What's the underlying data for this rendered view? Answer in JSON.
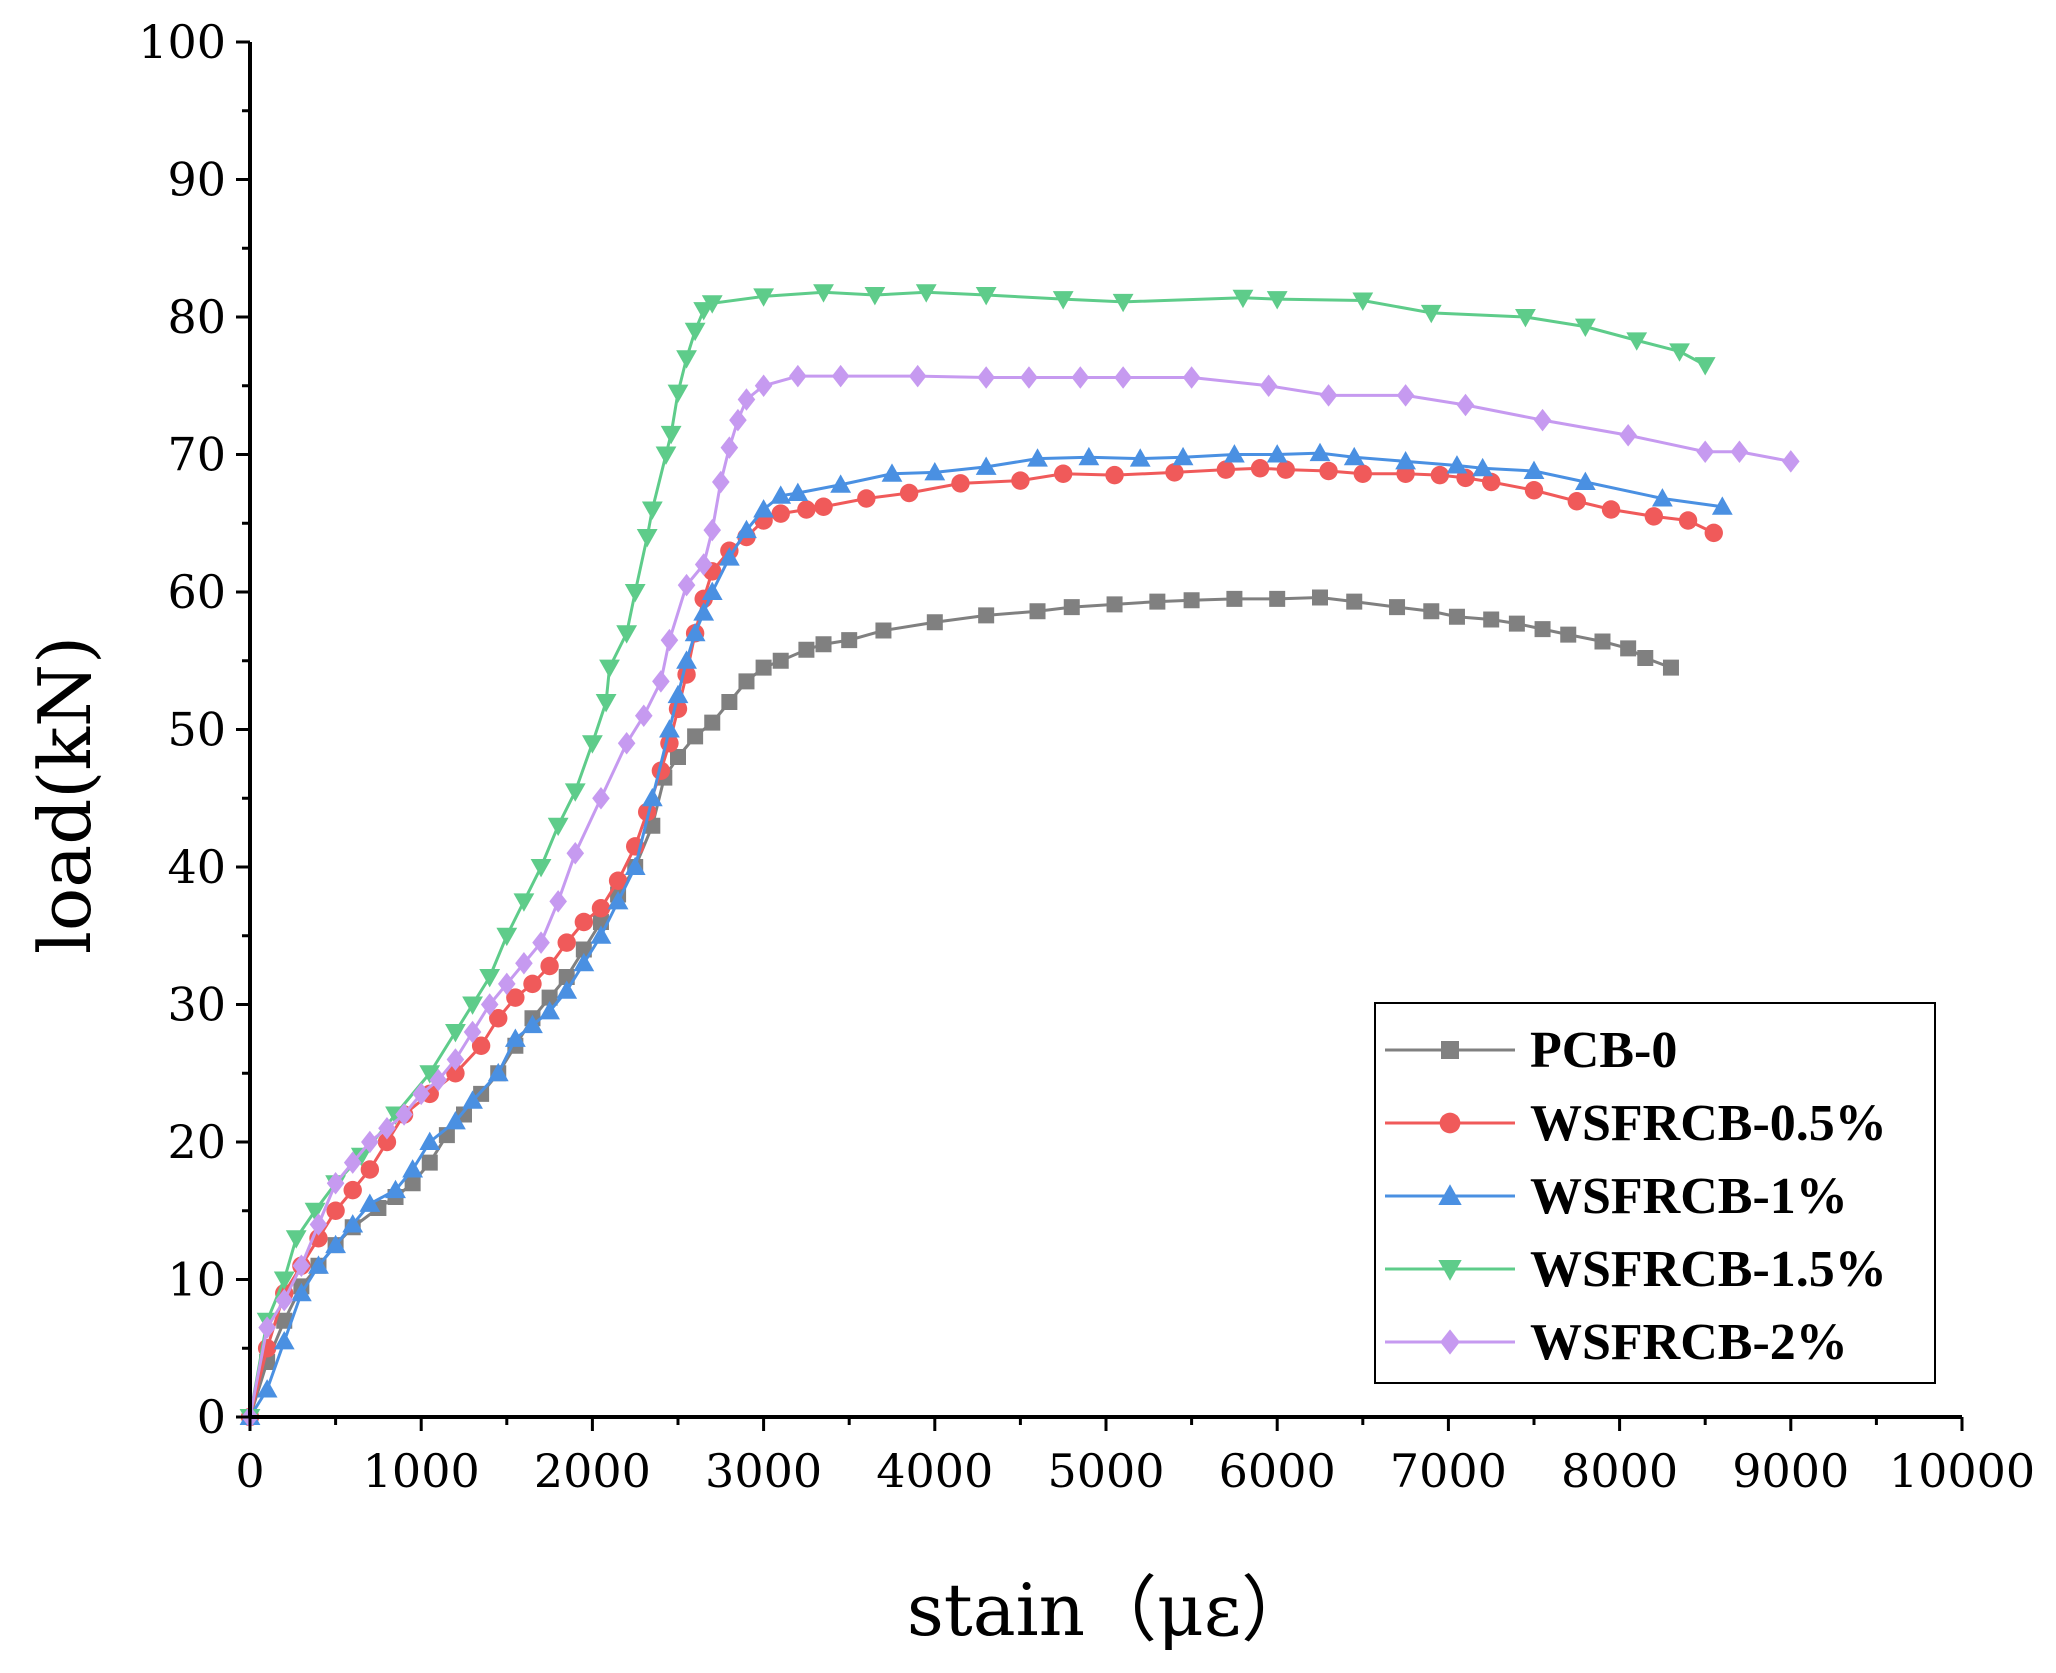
{
  "chart_data": {
    "type": "line",
    "title": "",
    "xlabel": "stain（με）",
    "ylabel": "load(kN)",
    "xlim": [
      0,
      10000
    ],
    "ylim": [
      0,
      100
    ],
    "x_ticks": [
      0,
      1000,
      2000,
      3000,
      4000,
      5000,
      6000,
      7000,
      8000,
      9000,
      10000
    ],
    "y_ticks": [
      0,
      10,
      20,
      30,
      40,
      50,
      60,
      70,
      80,
      90,
      100
    ],
    "grid": false,
    "legend_position": "bottom-right",
    "series": [
      {
        "name": "PCB-0",
        "color": "#808080",
        "marker": "square",
        "points": [
          [
            0,
            0
          ],
          [
            100,
            4
          ],
          [
            200,
            7
          ],
          [
            300,
            9.5
          ],
          [
            400,
            11
          ],
          [
            500,
            12.5
          ],
          [
            600,
            13.8
          ],
          [
            750,
            15.2
          ],
          [
            850,
            16
          ],
          [
            950,
            17
          ],
          [
            1050,
            18.5
          ],
          [
            1150,
            20.5
          ],
          [
            1250,
            22
          ],
          [
            1350,
            23.5
          ],
          [
            1450,
            25
          ],
          [
            1550,
            27
          ],
          [
            1650,
            29
          ],
          [
            1750,
            30.5
          ],
          [
            1850,
            32
          ],
          [
            1950,
            34
          ],
          [
            2050,
            36
          ],
          [
            2150,
            38
          ],
          [
            2250,
            40
          ],
          [
            2350,
            43
          ],
          [
            2420,
            46.5
          ],
          [
            2500,
            48
          ],
          [
            2600,
            49.5
          ],
          [
            2700,
            50.5
          ],
          [
            2800,
            52
          ],
          [
            2900,
            53.5
          ],
          [
            3000,
            54.5
          ],
          [
            3100,
            55
          ],
          [
            3250,
            55.8
          ],
          [
            3350,
            56.2
          ],
          [
            3500,
            56.5
          ],
          [
            3700,
            57.2
          ],
          [
            4000,
            57.8
          ],
          [
            4300,
            58.3
          ],
          [
            4600,
            58.6
          ],
          [
            4800,
            58.9
          ],
          [
            5050,
            59.1
          ],
          [
            5300,
            59.3
          ],
          [
            5500,
            59.4
          ],
          [
            5750,
            59.5
          ],
          [
            6000,
            59.5
          ],
          [
            6250,
            59.6
          ],
          [
            6450,
            59.3
          ],
          [
            6700,
            58.9
          ],
          [
            6900,
            58.6
          ],
          [
            7050,
            58.2
          ],
          [
            7250,
            58
          ],
          [
            7400,
            57.7
          ],
          [
            7550,
            57.3
          ],
          [
            7700,
            56.9
          ],
          [
            7900,
            56.4
          ],
          [
            8050,
            55.9
          ],
          [
            8150,
            55.2
          ],
          [
            8300,
            54.5
          ]
        ]
      },
      {
        "name": "WSFRCB-0.5%",
        "color": "#f05a5a",
        "marker": "circle",
        "points": [
          [
            0,
            0
          ],
          [
            100,
            5
          ],
          [
            200,
            9
          ],
          [
            300,
            11
          ],
          [
            400,
            13
          ],
          [
            500,
            15
          ],
          [
            600,
            16.5
          ],
          [
            700,
            18
          ],
          [
            800,
            20
          ],
          [
            900,
            22
          ],
          [
            1050,
            23.5
          ],
          [
            1200,
            25
          ],
          [
            1350,
            27
          ],
          [
            1450,
            29
          ],
          [
            1550,
            30.5
          ],
          [
            1650,
            31.5
          ],
          [
            1750,
            32.8
          ],
          [
            1850,
            34.5
          ],
          [
            1950,
            36
          ],
          [
            2050,
            37
          ],
          [
            2150,
            39
          ],
          [
            2250,
            41.5
          ],
          [
            2320,
            44
          ],
          [
            2400,
            47
          ],
          [
            2450,
            49
          ],
          [
            2500,
            51.5
          ],
          [
            2550,
            54
          ],
          [
            2600,
            57
          ],
          [
            2650,
            59.5
          ],
          [
            2700,
            61.5
          ],
          [
            2800,
            63
          ],
          [
            2900,
            64
          ],
          [
            3000,
            65.2
          ],
          [
            3100,
            65.7
          ],
          [
            3250,
            66
          ],
          [
            3350,
            66.2
          ],
          [
            3600,
            66.8
          ],
          [
            3850,
            67.2
          ],
          [
            4150,
            67.9
          ],
          [
            4500,
            68.1
          ],
          [
            4750,
            68.6
          ],
          [
            5050,
            68.5
          ],
          [
            5400,
            68.7
          ],
          [
            5700,
            68.9
          ],
          [
            5900,
            69
          ],
          [
            6050,
            68.9
          ],
          [
            6300,
            68.8
          ],
          [
            6500,
            68.6
          ],
          [
            6750,
            68.6
          ],
          [
            6950,
            68.5
          ],
          [
            7100,
            68.3
          ],
          [
            7250,
            68
          ],
          [
            7500,
            67.4
          ],
          [
            7750,
            66.6
          ],
          [
            7950,
            66
          ],
          [
            8200,
            65.5
          ],
          [
            8400,
            65.2
          ],
          [
            8550,
            64.3
          ]
        ]
      },
      {
        "name": "WSFRCB-1%",
        "color": "#4a90e2",
        "marker": "triangle-up",
        "points": [
          [
            0,
            0
          ],
          [
            100,
            2
          ],
          [
            200,
            5.5
          ],
          [
            300,
            9
          ],
          [
            400,
            11
          ],
          [
            500,
            12.5
          ],
          [
            600,
            14
          ],
          [
            700,
            15.5
          ],
          [
            850,
            16.5
          ],
          [
            950,
            18
          ],
          [
            1050,
            20
          ],
          [
            1200,
            21.5
          ],
          [
            1300,
            23
          ],
          [
            1450,
            25
          ],
          [
            1550,
            27.5
          ],
          [
            1650,
            28.5
          ],
          [
            1750,
            29.5
          ],
          [
            1850,
            31
          ],
          [
            1950,
            33
          ],
          [
            2050,
            35
          ],
          [
            2150,
            37.5
          ],
          [
            2250,
            40
          ],
          [
            2350,
            45
          ],
          [
            2450,
            50
          ],
          [
            2500,
            52.5
          ],
          [
            2550,
            55
          ],
          [
            2600,
            57
          ],
          [
            2650,
            58.5
          ],
          [
            2700,
            60
          ],
          [
            2800,
            62.5
          ],
          [
            2900,
            64.5
          ],
          [
            3000,
            66
          ],
          [
            3100,
            67
          ],
          [
            3200,
            67.2
          ],
          [
            3450,
            67.8
          ],
          [
            3750,
            68.6
          ],
          [
            4000,
            68.7
          ],
          [
            4300,
            69.1
          ],
          [
            4600,
            69.7
          ],
          [
            4900,
            69.8
          ],
          [
            5200,
            69.7
          ],
          [
            5450,
            69.8
          ],
          [
            5750,
            70
          ],
          [
            6000,
            70
          ],
          [
            6250,
            70.1
          ],
          [
            6450,
            69.8
          ],
          [
            6750,
            69.5
          ],
          [
            7050,
            69.2
          ],
          [
            7200,
            69
          ],
          [
            7500,
            68.8
          ],
          [
            7800,
            68
          ],
          [
            8250,
            66.8
          ],
          [
            8600,
            66.2
          ]
        ]
      },
      {
        "name": "WSFRCB-1.5%",
        "color": "#5ecc8a",
        "marker": "triangle-down",
        "points": [
          [
            0,
            0
          ],
          [
            100,
            7
          ],
          [
            200,
            10
          ],
          [
            270,
            13
          ],
          [
            380,
            15
          ],
          [
            500,
            17
          ],
          [
            650,
            19
          ],
          [
            850,
            22
          ],
          [
            1050,
            25
          ],
          [
            1200,
            28
          ],
          [
            1300,
            30
          ],
          [
            1400,
            32
          ],
          [
            1500,
            35
          ],
          [
            1600,
            37.5
          ],
          [
            1700,
            40
          ],
          [
            1800,
            43
          ],
          [
            1900,
            45.5
          ],
          [
            2000,
            49
          ],
          [
            2080,
            52
          ],
          [
            2100,
            54.5
          ],
          [
            2200,
            57
          ],
          [
            2250,
            60
          ],
          [
            2320,
            64
          ],
          [
            2350,
            66
          ],
          [
            2430,
            70
          ],
          [
            2460,
            71.5
          ],
          [
            2500,
            74.5
          ],
          [
            2550,
            77
          ],
          [
            2600,
            79
          ],
          [
            2650,
            80.5
          ],
          [
            2700,
            81
          ],
          [
            3000,
            81.5
          ],
          [
            3350,
            81.8
          ],
          [
            3650,
            81.6
          ],
          [
            3950,
            81.8
          ],
          [
            4300,
            81.6
          ],
          [
            4750,
            81.3
          ],
          [
            5100,
            81.1
          ],
          [
            5800,
            81.4
          ],
          [
            6000,
            81.3
          ],
          [
            6500,
            81.2
          ],
          [
            6900,
            80.3
          ],
          [
            7450,
            80
          ],
          [
            7800,
            79.3
          ],
          [
            8100,
            78.3
          ],
          [
            8350,
            77.5
          ],
          [
            8500,
            76.5
          ]
        ]
      },
      {
        "name": "WSFRCB-2%",
        "color": "#c69af0",
        "marker": "diamond",
        "points": [
          [
            0,
            0
          ],
          [
            100,
            6.5
          ],
          [
            200,
            8.5
          ],
          [
            300,
            11
          ],
          [
            400,
            14
          ],
          [
            500,
            17
          ],
          [
            600,
            18.5
          ],
          [
            700,
            20
          ],
          [
            800,
            21
          ],
          [
            900,
            22
          ],
          [
            1000,
            23.5
          ],
          [
            1100,
            24.5
          ],
          [
            1200,
            26
          ],
          [
            1300,
            28
          ],
          [
            1400,
            30
          ],
          [
            1500,
            31.5
          ],
          [
            1600,
            33
          ],
          [
            1700,
            34.5
          ],
          [
            1800,
            37.5
          ],
          [
            1900,
            41
          ],
          [
            2050,
            45
          ],
          [
            2200,
            49
          ],
          [
            2300,
            51
          ],
          [
            2400,
            53.5
          ],
          [
            2450,
            56.5
          ],
          [
            2550,
            60.5
          ],
          [
            2650,
            62
          ],
          [
            2700,
            64.5
          ],
          [
            2750,
            68
          ],
          [
            2800,
            70.5
          ],
          [
            2850,
            72.5
          ],
          [
            2900,
            74
          ],
          [
            3000,
            75
          ],
          [
            3200,
            75.7
          ],
          [
            3450,
            75.7
          ],
          [
            3900,
            75.7
          ],
          [
            4300,
            75.6
          ],
          [
            4550,
            75.6
          ],
          [
            4850,
            75.6
          ],
          [
            5100,
            75.6
          ],
          [
            5500,
            75.6
          ],
          [
            5950,
            75
          ],
          [
            6300,
            74.3
          ],
          [
            6750,
            74.3
          ],
          [
            7100,
            73.6
          ],
          [
            7550,
            72.5
          ],
          [
            8050,
            71.4
          ],
          [
            8500,
            70.2
          ],
          [
            8700,
            70.2
          ],
          [
            9000,
            69.5
          ]
        ]
      }
    ]
  }
}
